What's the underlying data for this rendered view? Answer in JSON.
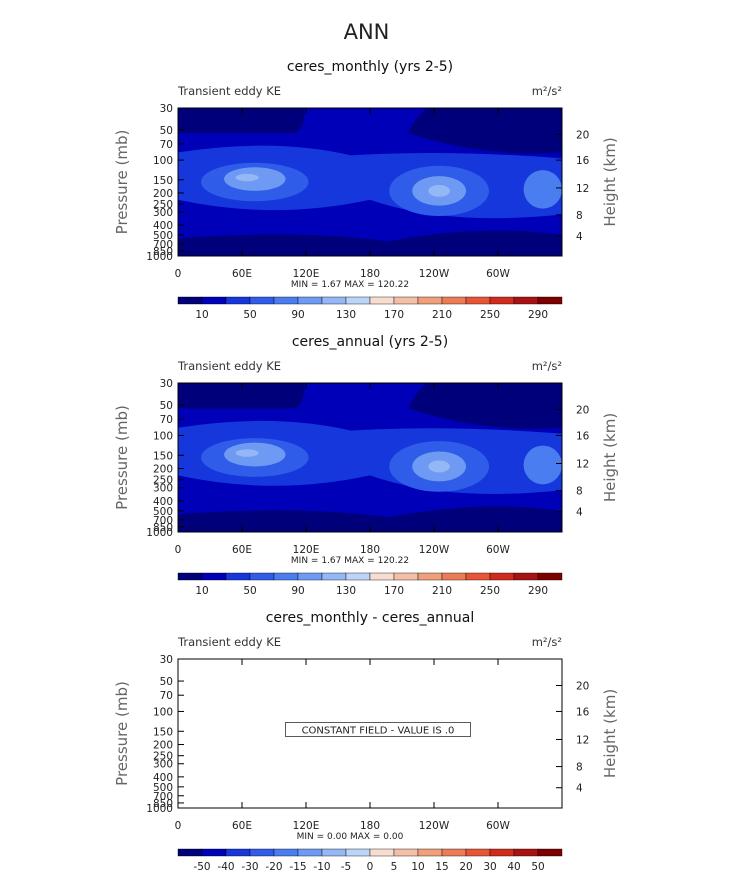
{
  "page_title": "ANN",
  "chart_data": [
    {
      "type": "heatmap",
      "title": "ceres_monthly (yrs 2-5)",
      "left_label": "Transient eddy KE",
      "units": "m²/s²",
      "ylabel": "Pressure (mb)",
      "ylabel_right": "Height (km)",
      "pressure_ticks": [
        "30",
        "50",
        "70",
        "100",
        "150",
        "200",
        "250",
        "300",
        "400",
        "500",
        "700",
        "850",
        "1000"
      ],
      "height_ticks": [
        "20",
        "16",
        "12",
        "8",
        "4"
      ],
      "lon_ticks": [
        "0",
        "60E",
        "120E",
        "180",
        "120W",
        "60W"
      ],
      "stats": "MIN =     1.67   MAX = 120.22",
      "colorbar_labels": [
        "10",
        "50",
        "90",
        "130",
        "170",
        "210",
        "250",
        "290"
      ],
      "colorbar_colors": [
        "#00007b",
        "#0000b8",
        "#1637dc",
        "#2f5ce8",
        "#4a7ef0",
        "#6f9af3",
        "#94b8f5",
        "#bcd4f7",
        "#f6ddd0",
        "#f3bfa6",
        "#ef9f7c",
        "#ec7b57",
        "#e65535",
        "#cf2c1d",
        "#a81212",
        "#7d0000"
      ],
      "range": "colored field"
    },
    {
      "type": "heatmap",
      "title": "ceres_annual (yrs 2-5)",
      "left_label": "Transient eddy KE",
      "units": "m²/s²",
      "ylabel": "Pressure (mb)",
      "ylabel_right": "Height (km)",
      "pressure_ticks": [
        "30",
        "50",
        "70",
        "100",
        "150",
        "200",
        "250",
        "300",
        "400",
        "500",
        "700",
        "850",
        "1000"
      ],
      "height_ticks": [
        "20",
        "16",
        "12",
        "8",
        "4"
      ],
      "lon_ticks": [
        "0",
        "60E",
        "120E",
        "180",
        "120W",
        "60W"
      ],
      "stats": "MIN =     1.67   MAX = 120.22",
      "colorbar_labels": [
        "10",
        "50",
        "90",
        "130",
        "170",
        "210",
        "250",
        "290"
      ],
      "colorbar_colors": [
        "#00007b",
        "#0000b8",
        "#1637dc",
        "#2f5ce8",
        "#4a7ef0",
        "#6f9af3",
        "#94b8f5",
        "#bcd4f7",
        "#f6ddd0",
        "#f3bfa6",
        "#ef9f7c",
        "#ec7b57",
        "#e65535",
        "#cf2c1d",
        "#a81212",
        "#7d0000"
      ]
    },
    {
      "type": "heatmap",
      "title": "ceres_monthly - ceres_annual",
      "left_label": "Transient eddy KE",
      "units": "m²/s²",
      "ylabel": "Pressure (mb)",
      "ylabel_right": "Height (km)",
      "pressure_ticks": [
        "30",
        "50",
        "70",
        "100",
        "150",
        "200",
        "250",
        "300",
        "400",
        "500",
        "700",
        "850",
        "1000"
      ],
      "height_ticks": [
        "20",
        "16",
        "12",
        "8",
        "4"
      ],
      "lon_ticks": [
        "0",
        "60E",
        "120E",
        "180",
        "120W",
        "60W"
      ],
      "stats": "MIN =     0.00   MAX =     0.00",
      "message": "CONSTANT FIELD - VALUE IS .0",
      "colorbar_labels": [
        "-50",
        "-40",
        "-30",
        "-20",
        "-15",
        "-10",
        "-5",
        "0",
        "5",
        "10",
        "15",
        "20",
        "30",
        "40",
        "50"
      ],
      "colorbar_colors": [
        "#00007b",
        "#0000b8",
        "#1637dc",
        "#2f5ce8",
        "#4a7ef0",
        "#6f9af3",
        "#94b8f5",
        "#bcd4f7",
        "#f6ddd0",
        "#f3bfa6",
        "#ef9f7c",
        "#ec7b57",
        "#e65535",
        "#cf2c1d",
        "#a81212",
        "#7d0000"
      ]
    }
  ]
}
